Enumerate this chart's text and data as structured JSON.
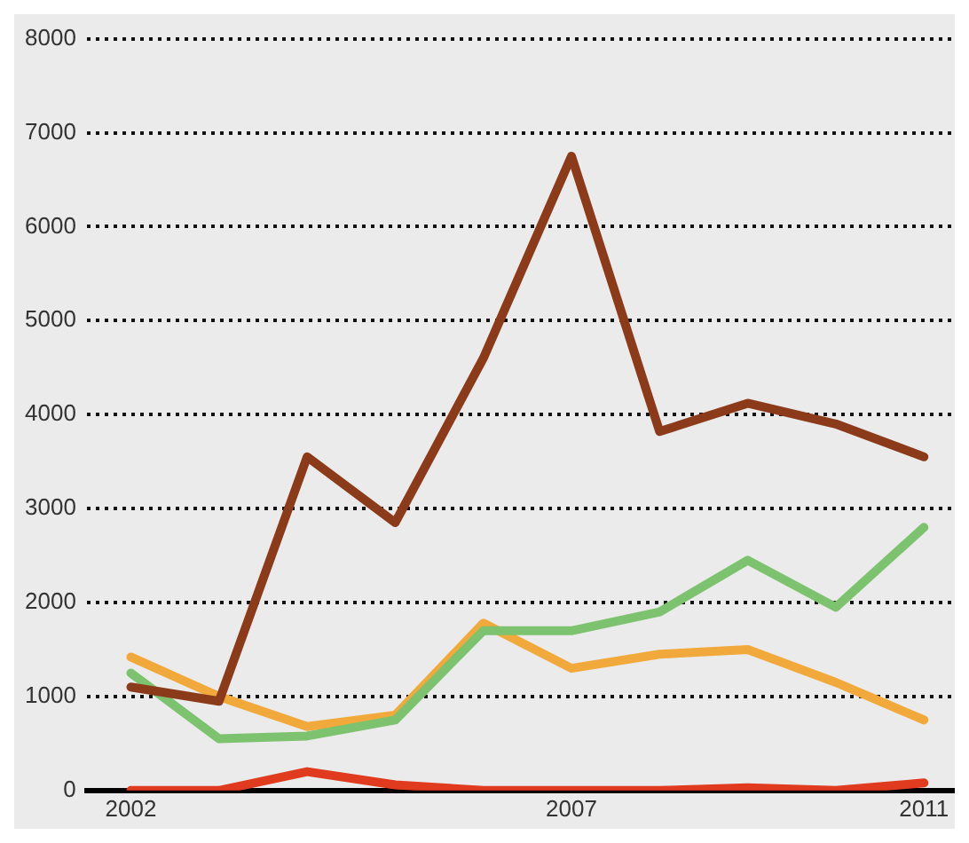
{
  "chart_data": {
    "type": "line",
    "x": [
      2002,
      2003,
      2004,
      2005,
      2006,
      2007,
      2008,
      2009,
      2010,
      2011
    ],
    "series": [
      {
        "color": "#8b3a1a",
        "values": [
          1100,
          950,
          3550,
          2850,
          4600,
          6750,
          3820,
          4120,
          3900,
          3550
        ]
      },
      {
        "color": "#7dc26e",
        "values": [
          1250,
          550,
          580,
          750,
          1700,
          1700,
          1900,
          2450,
          1950,
          2800
        ]
      },
      {
        "color": "#f2a93b",
        "values": [
          1420,
          1000,
          680,
          800,
          1780,
          1300,
          1450,
          1500,
          1150,
          750
        ]
      },
      {
        "color": "#e03a1f",
        "values": [
          0,
          0,
          200,
          60,
          0,
          0,
          0,
          30,
          0,
          80
        ]
      }
    ],
    "xlim": [
      2001.5,
      2011.35
    ],
    "xticks": [
      2002,
      2007,
      2011
    ],
    "ylim": [
      0,
      8000
    ],
    "yticks": [
      0,
      1000,
      2000,
      3000,
      4000,
      5000,
      6000,
      7000,
      8000
    ],
    "grid": "y",
    "legend": false,
    "marker": "none",
    "line_style": "solid"
  }
}
